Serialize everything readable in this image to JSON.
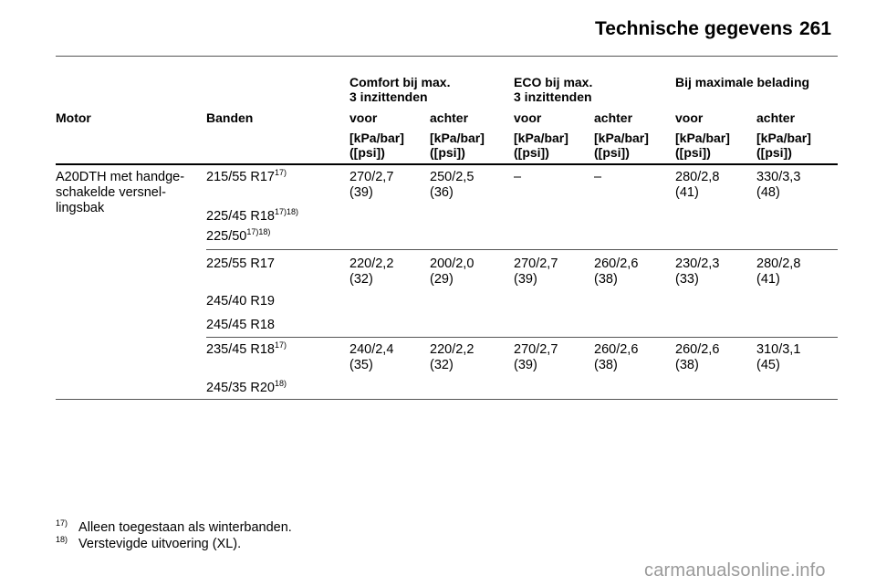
{
  "header": {
    "title": "Technische gegevens",
    "page_number": "261"
  },
  "table": {
    "group_headers": [
      {
        "line1": "Comfort bij max.",
        "line2": "3 inzittenden"
      },
      {
        "line1": "ECO bij max.",
        "line2": "3 inzittenden"
      },
      {
        "line1": "Bij maximale belading",
        "line2": ""
      }
    ],
    "col_motor": "Motor",
    "col_banden": "Banden",
    "sub_headers": [
      "voor",
      "achter",
      "voor",
      "achter",
      "voor",
      "achter"
    ],
    "unit_line1": "[kPa/bar]",
    "unit_line2": "([psi])",
    "motor_lines": [
      "A20DTH met handge-",
      "schakelde versnel-",
      "lingsbak"
    ],
    "groups": [
      {
        "tyres": [
          {
            "size": "215/55 R17",
            "note": "17)"
          },
          {
            "size": "225/45 R18",
            "note": "17)18)"
          },
          {
            "size": "225/50",
            "note": "17)18)"
          }
        ],
        "values": [
          {
            "top": "270/2,7",
            "bottom": "(39)"
          },
          {
            "top": "250/2,5",
            "bottom": "(36)"
          },
          {
            "top": "–",
            "bottom": ""
          },
          {
            "top": "–",
            "bottom": ""
          },
          {
            "top": "280/2,8",
            "bottom": "(41)"
          },
          {
            "top": "330/3,3",
            "bottom": "(48)"
          }
        ]
      },
      {
        "tyres": [
          {
            "size": "225/55 R17",
            "note": ""
          },
          {
            "size": "245/40 R19",
            "note": ""
          },
          {
            "size": "245/45 R18",
            "note": ""
          }
        ],
        "values": [
          {
            "top": "220/2,2",
            "bottom": "(32)"
          },
          {
            "top": "200/2,0",
            "bottom": "(29)"
          },
          {
            "top": "270/2,7",
            "bottom": "(39)"
          },
          {
            "top": "260/2,6",
            "bottom": "(38)"
          },
          {
            "top": "230/2,3",
            "bottom": "(33)"
          },
          {
            "top": "280/2,8",
            "bottom": "(41)"
          }
        ]
      },
      {
        "tyres": [
          {
            "size": "235/45 R18",
            "note": "17)"
          },
          {
            "size": "245/35 R20",
            "note": "18)"
          }
        ],
        "values": [
          {
            "top": "240/2,4",
            "bottom": "(35)"
          },
          {
            "top": "220/2,2",
            "bottom": "(32)"
          },
          {
            "top": "270/2,7",
            "bottom": "(39)"
          },
          {
            "top": "260/2,6",
            "bottom": "(38)"
          },
          {
            "top": "260/2,6",
            "bottom": "(38)"
          },
          {
            "top": "310/3,1",
            "bottom": "(45)"
          }
        ]
      }
    ]
  },
  "footnotes": [
    {
      "mark": "17)",
      "text": "Alleen toegestaan als winterbanden."
    },
    {
      "mark": "18)",
      "text": "Verstevigde uitvoering (XL)."
    }
  ],
  "watermark": "carmanualsonline.info"
}
